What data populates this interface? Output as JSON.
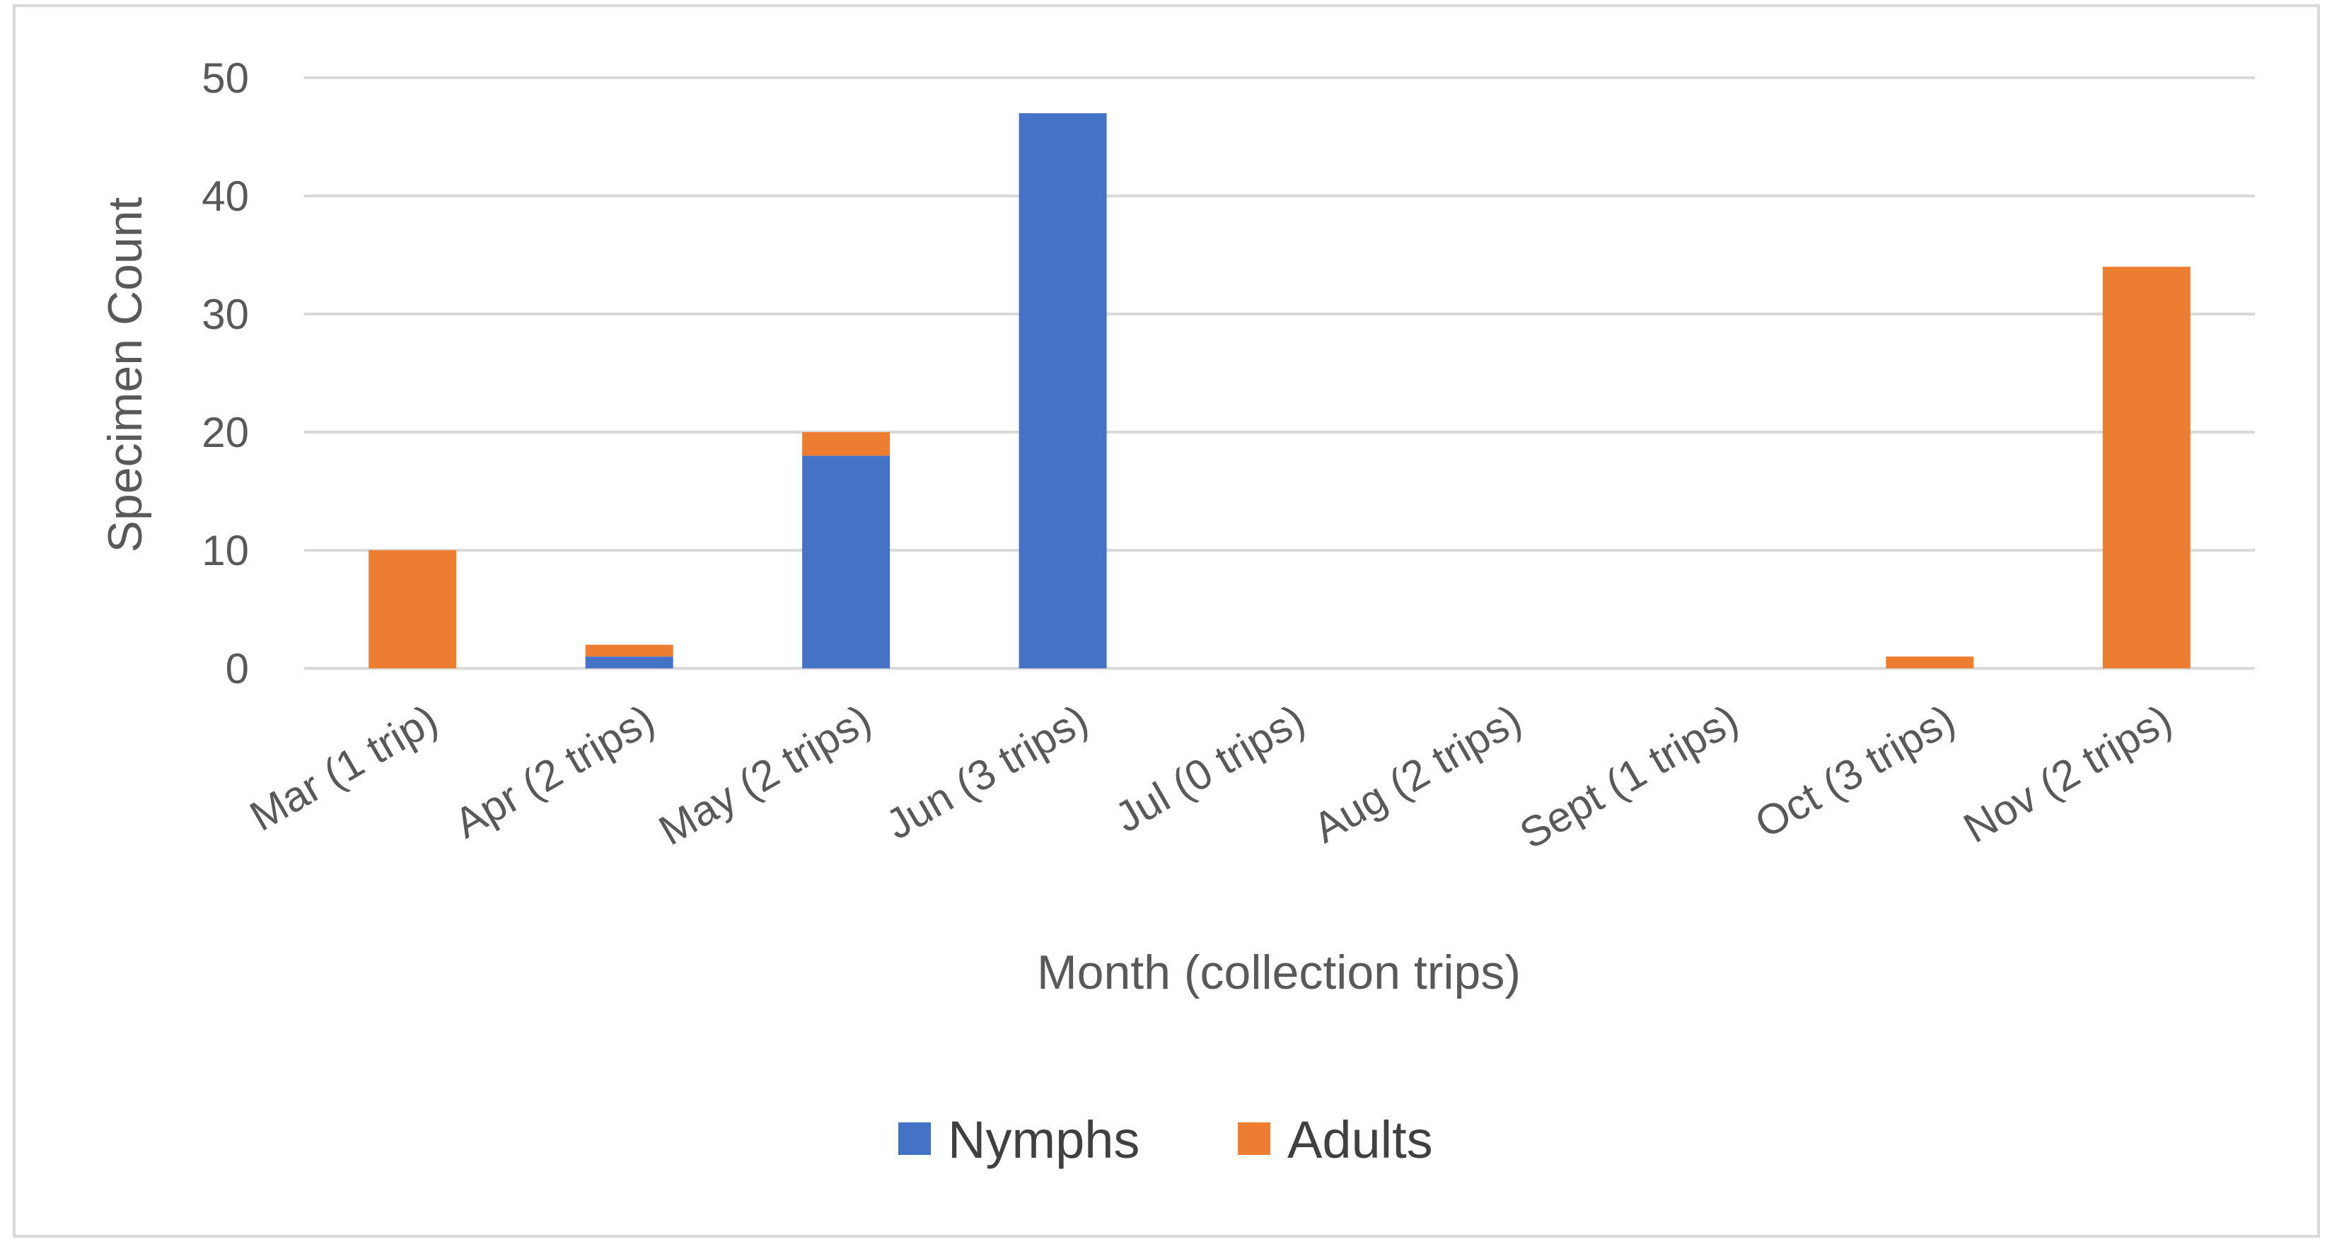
{
  "chart_data": {
    "type": "bar",
    "stacked": true,
    "categories": [
      "Mar (1 trip)",
      "Apr (2 trips)",
      "May (2 trips)",
      "Jun (3 trips)",
      "Jul (0 trips)",
      "Aug (2 trips)",
      "Sept (1 trips)",
      "Oct (3 trips)",
      "Nov (2 trips)"
    ],
    "series": [
      {
        "name": "Nymphs",
        "color": "#4472c4",
        "values": [
          0,
          1,
          18,
          47,
          0,
          0,
          0,
          0,
          0
        ]
      },
      {
        "name": "Adults",
        "color": "#ed7d31",
        "values": [
          10,
          1,
          2,
          0,
          0,
          0,
          0,
          1,
          34
        ]
      }
    ],
    "xlabel": "Month (collection trips)",
    "ylabel": "Specimen Count",
    "ylim": [
      0,
      50
    ],
    "yticks": [
      0,
      10,
      20,
      30,
      40,
      50
    ],
    "grid": true,
    "legend_position": "bottom"
  }
}
